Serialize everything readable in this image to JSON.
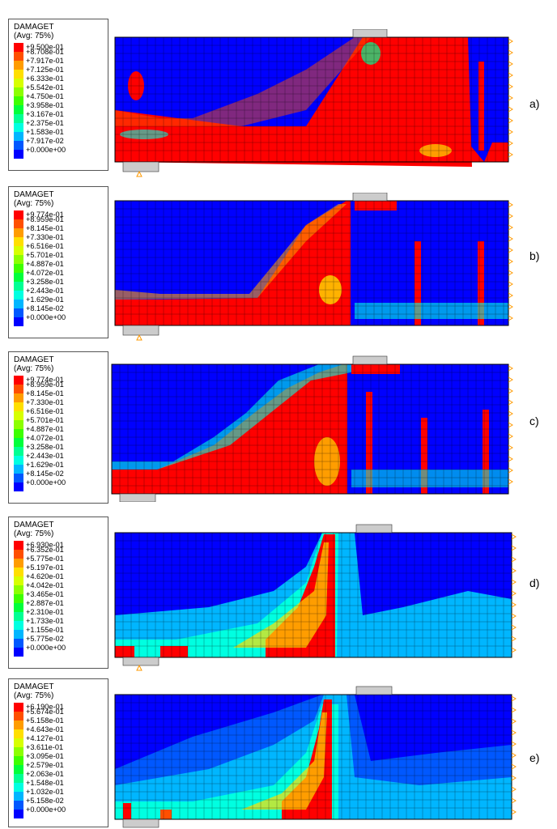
{
  "panels": [
    {
      "label": "a)",
      "legend": {
        "title": "DAMAGET",
        "subtitle": "(Avg: 75%)",
        "values": [
          "+9.500e-01",
          "+8.708e-01",
          "+7.917e-01",
          "+7.125e-01",
          "+6.333e-01",
          "+5.542e-01",
          "+4.750e-01",
          "+3.958e-01",
          "+3.167e-01",
          "+2.375e-01",
          "+1.583e-01",
          "+7.917e-02",
          "+0.000e+00"
        ]
      }
    },
    {
      "label": "b)",
      "legend": {
        "title": "DAMAGET",
        "subtitle": "(Avg: 75%)",
        "values": [
          "+9.774e-01",
          "+8.959e-01",
          "+8.145e-01",
          "+7.330e-01",
          "+6.516e-01",
          "+5.701e-01",
          "+4.887e-01",
          "+4.072e-01",
          "+3.258e-01",
          "+2.443e-01",
          "+1.629e-01",
          "+8.145e-02",
          "+0.000e+00"
        ]
      }
    },
    {
      "label": "c)",
      "legend": {
        "title": "DAMAGET",
        "subtitle": "(Avg: 75%)",
        "values": [
          "+9.774e-01",
          "+8.959e-01",
          "+8.145e-01",
          "+7.330e-01",
          "+6.516e-01",
          "+5.701e-01",
          "+4.887e-01",
          "+4.072e-01",
          "+3.258e-01",
          "+2.443e-01",
          "+1.629e-01",
          "+8.145e-02",
          "+0.000e+00"
        ]
      }
    },
    {
      "label": "d)",
      "legend": {
        "title": "DAMAGET",
        "subtitle": "(Avg: 75%)",
        "values": [
          "+6.930e-01",
          "+6.352e-01",
          "+5.775e-01",
          "+5.197e-01",
          "+4.620e-01",
          "+4.042e-01",
          "+3.465e-01",
          "+2.887e-01",
          "+2.310e-01",
          "+1.733e-01",
          "+1.155e-01",
          "+5.775e-02",
          "+0.000e+00"
        ]
      }
    },
    {
      "label": "e)",
      "legend": {
        "title": "DAMAGET",
        "subtitle": "(Avg: 75%)",
        "values": [
          "+6.190e-01",
          "+5.674e-01",
          "+5.158e-01",
          "+4.643e-01",
          "+4.127e-01",
          "+3.611e-01",
          "+3.095e-01",
          "+2.579e-01",
          "+2.063e-01",
          "+1.548e-01",
          "+1.032e-01",
          "+5.158e-02",
          "+0.000e+00"
        ]
      }
    }
  ],
  "colors": {
    "scale": [
      "#ff0000",
      "#ff4f00",
      "#ff9c00",
      "#ffdf00",
      "#d7ff00",
      "#8cff00",
      "#3dff00",
      "#00ff3b",
      "#00ff93",
      "#00ffe1",
      "#00b6ff",
      "#0058ff",
      "#0000ff"
    ],
    "mesh": "#000000",
    "support": "#cccccc",
    "bc": "#ff9900"
  }
}
